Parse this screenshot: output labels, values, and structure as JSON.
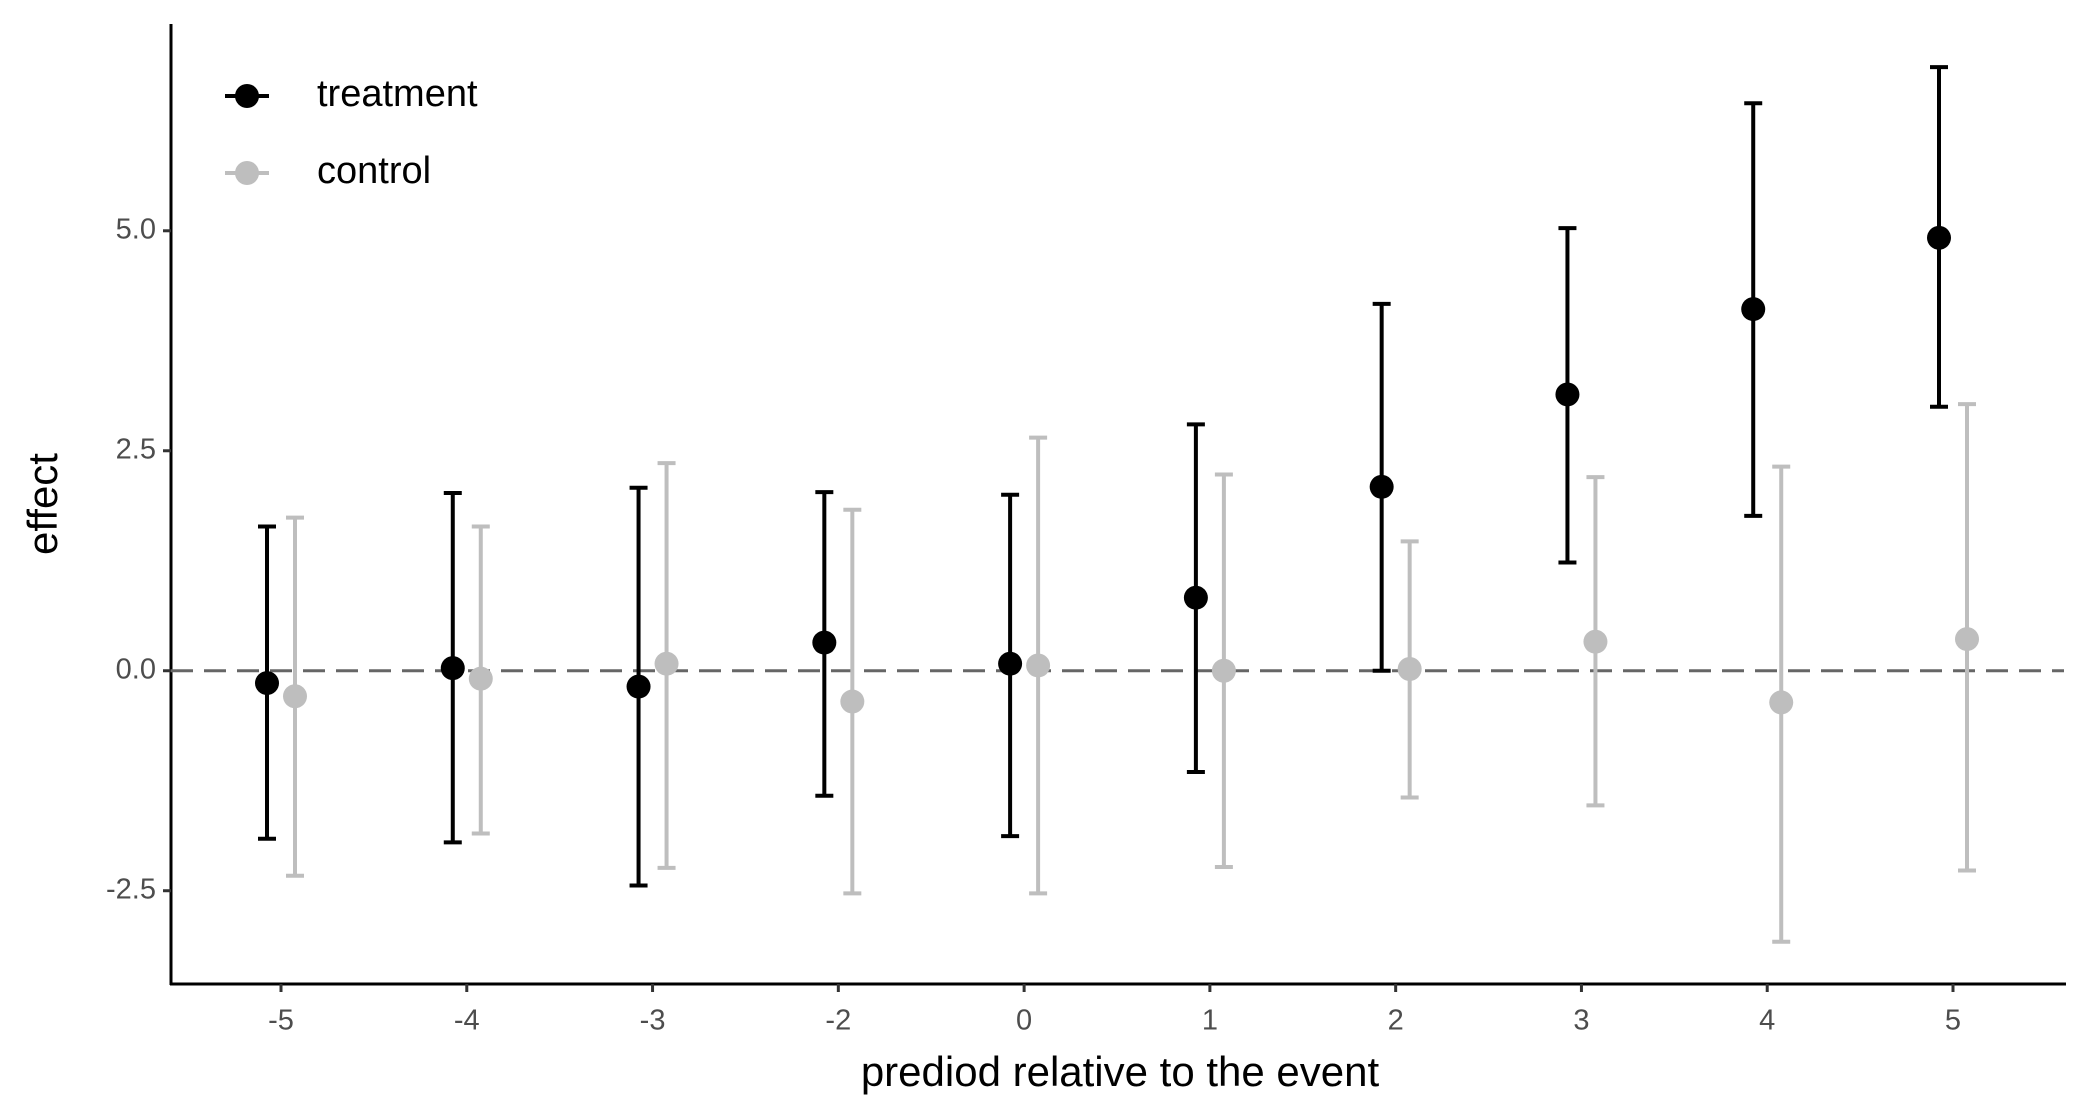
{
  "chart_data": {
    "type": "errorbar",
    "x_label": "prediod relative to the event",
    "y_label": "effect",
    "categories": [
      "-5",
      "-4",
      "-3",
      "-2",
      "0",
      "1",
      "2",
      "3",
      "4",
      "5"
    ],
    "series": [
      {
        "name": "treatment",
        "color": "#000000",
        "values": [
          -0.14,
          0.03,
          -0.18,
          0.32,
          0.08,
          0.83,
          2.09,
          3.14,
          4.11,
          4.92
        ],
        "lower": [
          -1.91,
          -1.95,
          -2.44,
          -1.42,
          -1.88,
          -1.15,
          0.0,
          1.23,
          1.76,
          3.0
        ],
        "upper": [
          1.64,
          2.02,
          2.08,
          2.03,
          2.0,
          2.8,
          4.17,
          5.03,
          6.45,
          6.86
        ]
      },
      {
        "name": "control",
        "color": "#bebebe",
        "values": [
          -0.29,
          -0.09,
          0.08,
          -0.35,
          0.06,
          0.0,
          0.02,
          0.33,
          -0.36,
          0.36
        ],
        "lower": [
          -2.33,
          -1.85,
          -2.24,
          -2.53,
          -2.53,
          -2.23,
          -1.44,
          -1.53,
          -3.08,
          -2.27
        ],
        "upper": [
          1.74,
          1.64,
          2.36,
          1.83,
          2.65,
          2.23,
          1.47,
          2.2,
          2.32,
          3.03
        ]
      }
    ],
    "ylim": [
      -3.56,
      7.35
    ],
    "yticks": [
      {
        "value": -2.5,
        "label": "-2.5"
      },
      {
        "value": 0,
        "label": "0.0"
      },
      {
        "value": 2.5,
        "label": "2.5"
      },
      {
        "value": 5,
        "label": "5.0"
      }
    ],
    "reference_line": 0,
    "grid": false,
    "legend": "top-left"
  }
}
